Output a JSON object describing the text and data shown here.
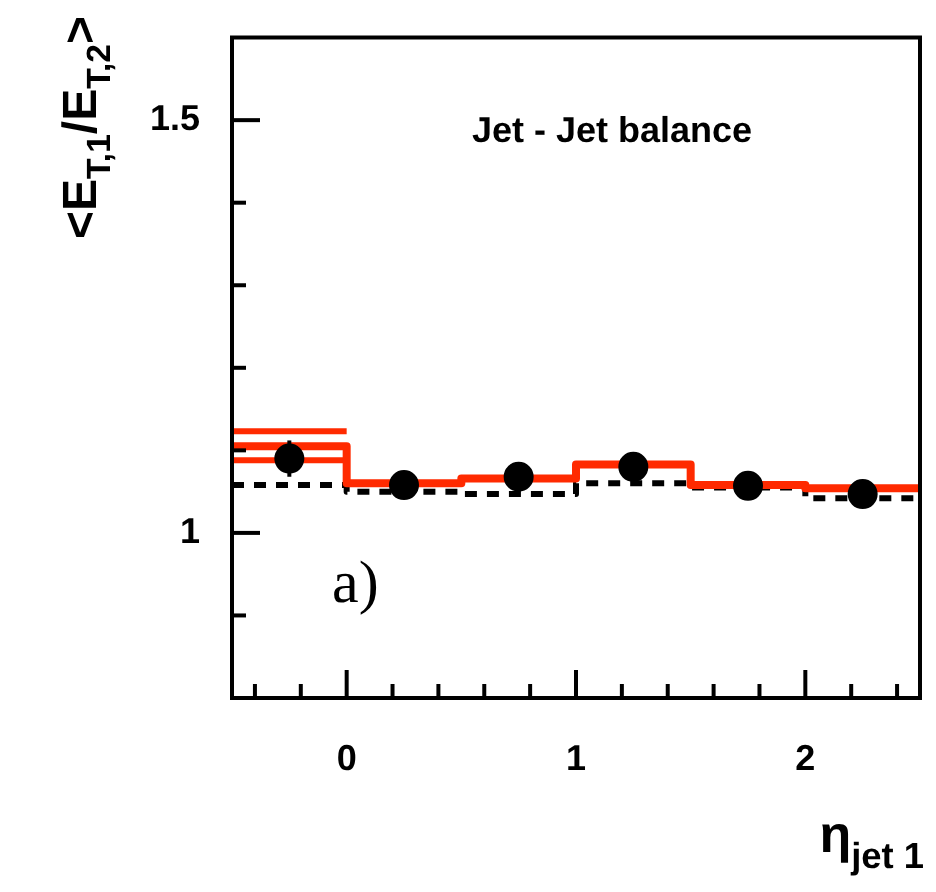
{
  "chart_data": {
    "type": "histogram",
    "legend_title": "Jet - Jet balance",
    "annotations": [
      "a)"
    ],
    "xlabel": "η$_{jet 1}$",
    "ylabel": "<E$_{T,1}$/E$_{T,2}$>",
    "bins": [
      -0.5,
      0,
      0.5,
      1,
      1.5,
      2,
      2.5
    ],
    "xlim": [
      -0.5,
      2.5
    ],
    "ylim": [
      0.8,
      1.6
    ],
    "grid": false,
    "xticks": [
      {
        "value": -0.4,
        "label": null
      },
      {
        "value": -0.2,
        "label": null
      },
      0,
      {
        "value": 0.2,
        "label": null
      },
      {
        "value": 0.4,
        "label": null
      },
      {
        "value": 0.6,
        "label": null
      },
      {
        "value": 0.8,
        "label": null
      },
      1,
      {
        "value": 1.2,
        "label": null
      },
      {
        "value": 1.4,
        "label": null
      },
      {
        "value": 1.6,
        "label": null
      },
      {
        "value": 1.8,
        "label": null
      },
      2,
      {
        "value": 2.2,
        "label": null
      },
      {
        "value": 2.4,
        "label": null
      }
    ],
    "yticks": [
      {
        "value": 0.9,
        "label": null
      },
      1,
      {
        "value": 1.1,
        "label": null
      },
      {
        "value": 1.2,
        "label": null
      },
      {
        "value": 1.3,
        "label": null
      },
      {
        "value": 1.4,
        "label": null
      },
      1.5
    ],
    "series": [
      {
        "color": "#ff2a00",
        "line_style": "solid",
        "values": [
          1.105,
          1.06,
          1.066,
          1.083,
          1.058,
          1.054
        ]
      },
      {
        "type": "line",
        "color": "#ff2a00",
        "line_style": "solid",
        "x": [
          -0.5,
          0
        ],
        "values": [
          1.123,
          1.123
        ]
      },
      {
        "type": "line",
        "color": "#ff2a00",
        "line_style": "solid",
        "x": [
          -0.5,
          0
        ],
        "values": [
          1.088,
          1.088
        ]
      },
      {
        "color": "#000000",
        "line_style": "dashed",
        "values": [
          1.058,
          1.05,
          1.047,
          1.06,
          1.055,
          1.042
        ]
      },
      {
        "type": "scatter",
        "color": "#000000",
        "marker": "circle",
        "x": [
          -0.25,
          0.25,
          0.75,
          1.25,
          1.75,
          2.25
        ],
        "values": [
          1.09,
          1.058,
          1.068,
          1.08,
          1.057,
          1.047
        ],
        "errors": [
          0.022,
          null,
          null,
          null,
          null,
          null
        ]
      }
    ]
  }
}
